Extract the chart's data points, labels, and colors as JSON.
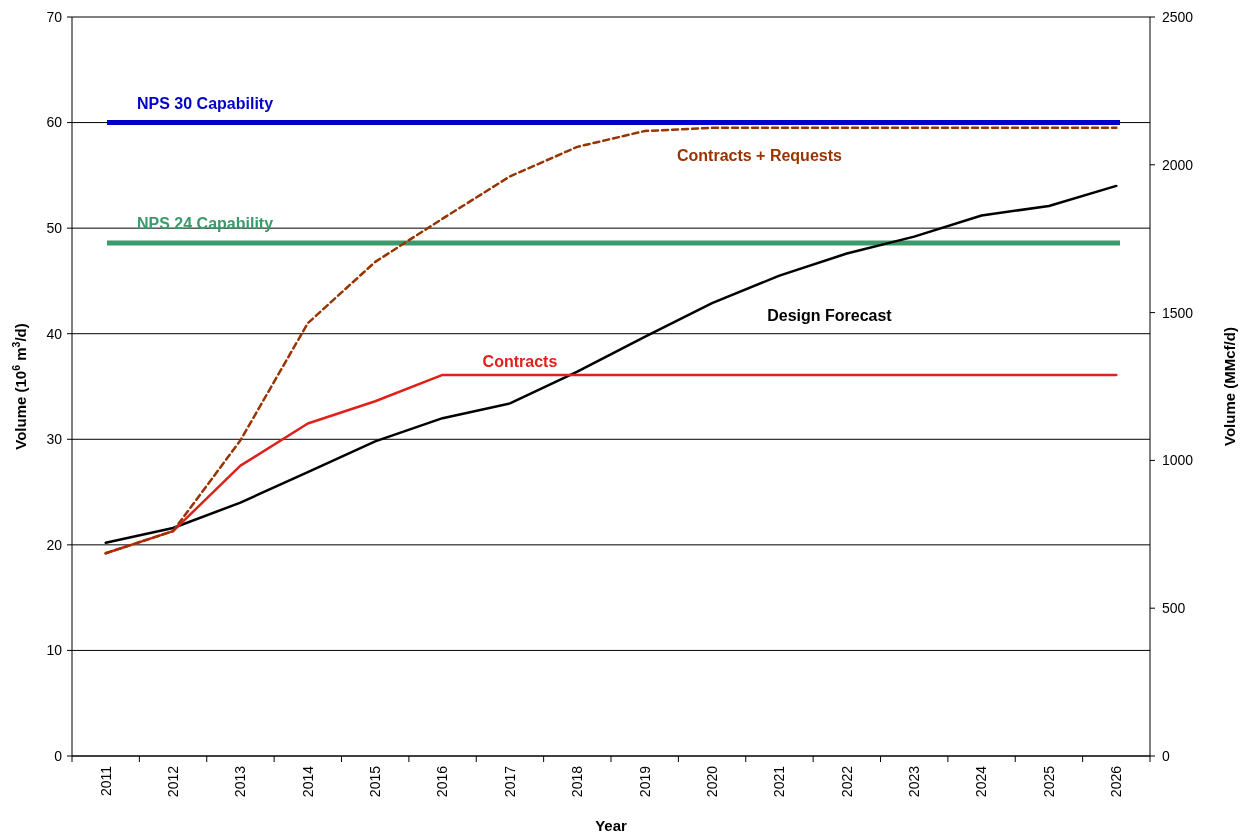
{
  "chart_data": {
    "type": "line",
    "xlabel": "Year",
    "ylabel": "Volume (10$^{6}$ m$^{3}$/d)",
    "y2label": "Volume (MMcf/d)",
    "categories": [
      "2011",
      "2012",
      "2013",
      "2014",
      "2015",
      "2016",
      "2017",
      "2018",
      "2019",
      "2020",
      "2021",
      "2022",
      "2023",
      "2024",
      "2025",
      "2026"
    ],
    "ylim": [
      0,
      70
    ],
    "yticks": [
      0,
      10,
      20,
      30,
      40,
      50,
      60,
      70
    ],
    "y2lim": [
      0,
      2500
    ],
    "y2ticks": [
      0,
      500,
      1000,
      1500,
      2000,
      2500
    ],
    "grid": "y",
    "marker": "none",
    "series": [
      {
        "name": "Design Forecast",
        "color": "#000000",
        "line_style": "solid",
        "values": [
          20.2,
          21.6,
          24.0,
          26.9,
          29.8,
          32.0,
          33.4,
          36.4,
          39.7,
          42.9,
          45.5,
          47.6,
          49.2,
          51.2,
          52.1,
          54.0
        ]
      },
      {
        "name": "Contracts",
        "color": "#e0201b",
        "line_style": "solid",
        "values": [
          19.2,
          21.3,
          27.5,
          31.5,
          33.6,
          36.1,
          36.1,
          36.1,
          36.1,
          36.1,
          36.1,
          36.1,
          36.1,
          36.1,
          36.1,
          36.1
        ]
      },
      {
        "name": "Contracts + Requests",
        "color": "#993300",
        "line_style": "dashed",
        "values": [
          19.2,
          21.3,
          29.9,
          41.0,
          46.8,
          50.9,
          54.9,
          57.7,
          59.2,
          59.5,
          59.5,
          59.5,
          59.5,
          59.5,
          59.5,
          59.5
        ]
      }
    ],
    "ref_lines": [
      {
        "axis": "y",
        "value": 60,
        "label": "NPS 30 Capability",
        "color": "#0000cc"
      },
      {
        "axis": "y",
        "value": 48.6,
        "label": "NPS 24 Capability",
        "color": "#3a9a6a"
      }
    ]
  }
}
